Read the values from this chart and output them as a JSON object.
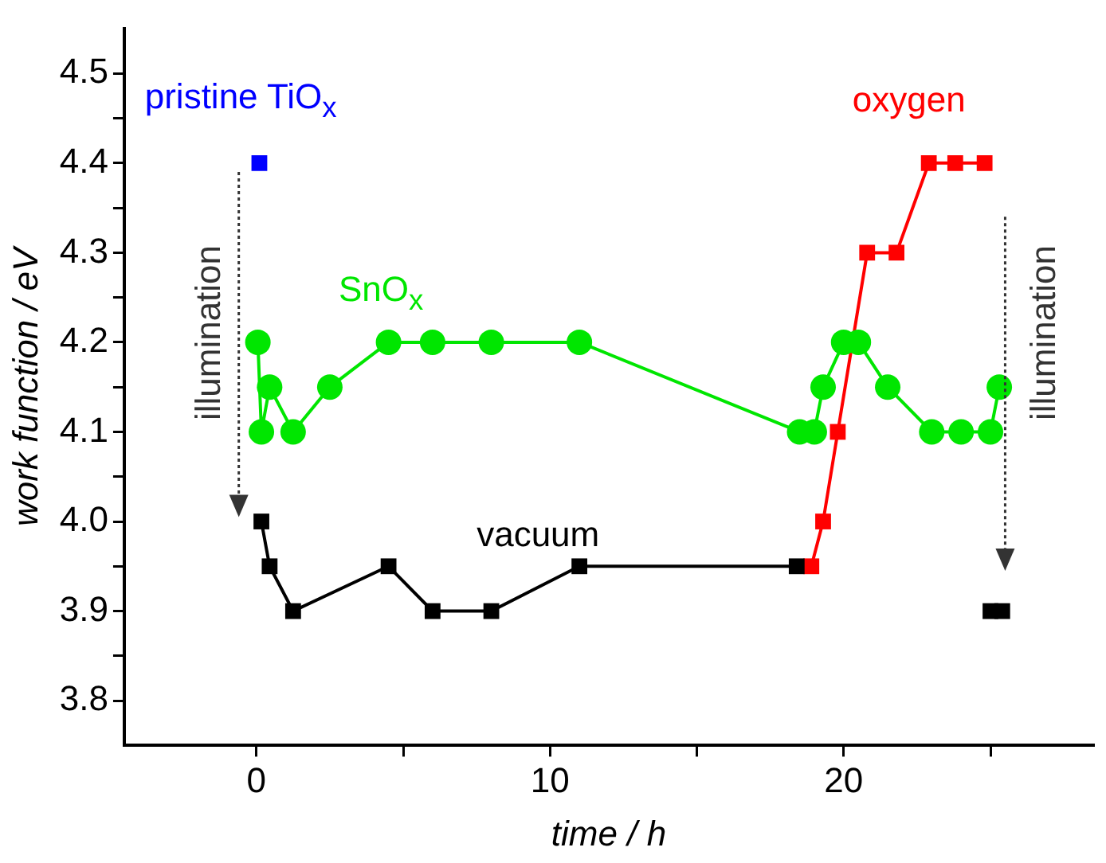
{
  "chart_data": {
    "type": "line",
    "xlabel": "time / h",
    "ylabel": "work function / eV",
    "xlim": [
      -4.5,
      28.5
    ],
    "xticks": [
      0,
      {
        "value": 5,
        "label": null
      },
      10,
      {
        "value": 15,
        "label": null
      },
      20,
      {
        "value": 25,
        "label": null
      }
    ],
    "ylim": [
      3.75,
      4.55
    ],
    "yticks": [
      {
        "value": 3.8,
        "label": "3.8"
      },
      {
        "value": 3.85,
        "label": null
      },
      {
        "value": 3.9,
        "label": "3.9"
      },
      {
        "value": 3.95,
        "label": null
      },
      {
        "value": 4.0,
        "label": "4.0"
      },
      {
        "value": 4.05,
        "label": null
      },
      {
        "value": 4.1,
        "label": "4.1"
      },
      {
        "value": 4.15,
        "label": null
      },
      {
        "value": 4.2,
        "label": "4.2"
      },
      {
        "value": 4.25,
        "label": null
      },
      {
        "value": 4.3,
        "label": "4.3"
      },
      {
        "value": 4.35,
        "label": null
      },
      {
        "value": 4.4,
        "label": "4.4"
      },
      {
        "value": 4.45,
        "label": null
      },
      {
        "value": 4.5,
        "label": "4.5"
      }
    ],
    "grid": false,
    "legend": false,
    "marker": "square",
    "series": [
      {
        "name": "pristine TiO$_{x}$",
        "type": "scatter",
        "color": "#0000ff",
        "x": [
          0.1
        ],
        "values": [
          4.4
        ]
      },
      {
        "name": "SnO$_{x}$",
        "color": "#00e600",
        "marker": "circle",
        "x": [
          0.05,
          0.17,
          0.45,
          1.25,
          2.5,
          4.5,
          6.0,
          8.0,
          11.0,
          18.5,
          19.0,
          19.3,
          20.0,
          20.5,
          21.5,
          23.0,
          24.0,
          25.0,
          25.3
        ],
        "values": [
          4.2,
          4.1,
          4.15,
          4.1,
          4.15,
          4.2,
          4.2,
          4.2,
          4.2,
          4.1,
          4.1,
          4.15,
          4.2,
          4.2,
          4.15,
          4.1,
          4.1,
          4.1,
          4.15
        ]
      },
      {
        "name": "vacuum",
        "color": "#000000",
        "x": [
          0.17,
          0.45,
          1.25,
          4.5,
          6.0,
          8.0,
          11.0,
          18.4
        ],
        "values": [
          4.0,
          3.95,
          3.9,
          3.95,
          3.9,
          3.9,
          3.95,
          3.95
        ]
      },
      {
        "type": "scatter",
        "color": "#000000",
        "x": [
          25.0,
          25.4
        ],
        "values": [
          3.9,
          3.9
        ]
      },
      {
        "name": "oxygen",
        "color": "#ff0000",
        "x": [
          18.9,
          19.3,
          19.8,
          20.8,
          21.8,
          22.9,
          23.8,
          24.8
        ],
        "values": [
          3.95,
          4.0,
          4.1,
          4.3,
          4.3,
          4.4,
          4.4,
          4.4
        ]
      }
    ],
    "annotations": [
      "illumination",
      "illumination"
    ]
  }
}
